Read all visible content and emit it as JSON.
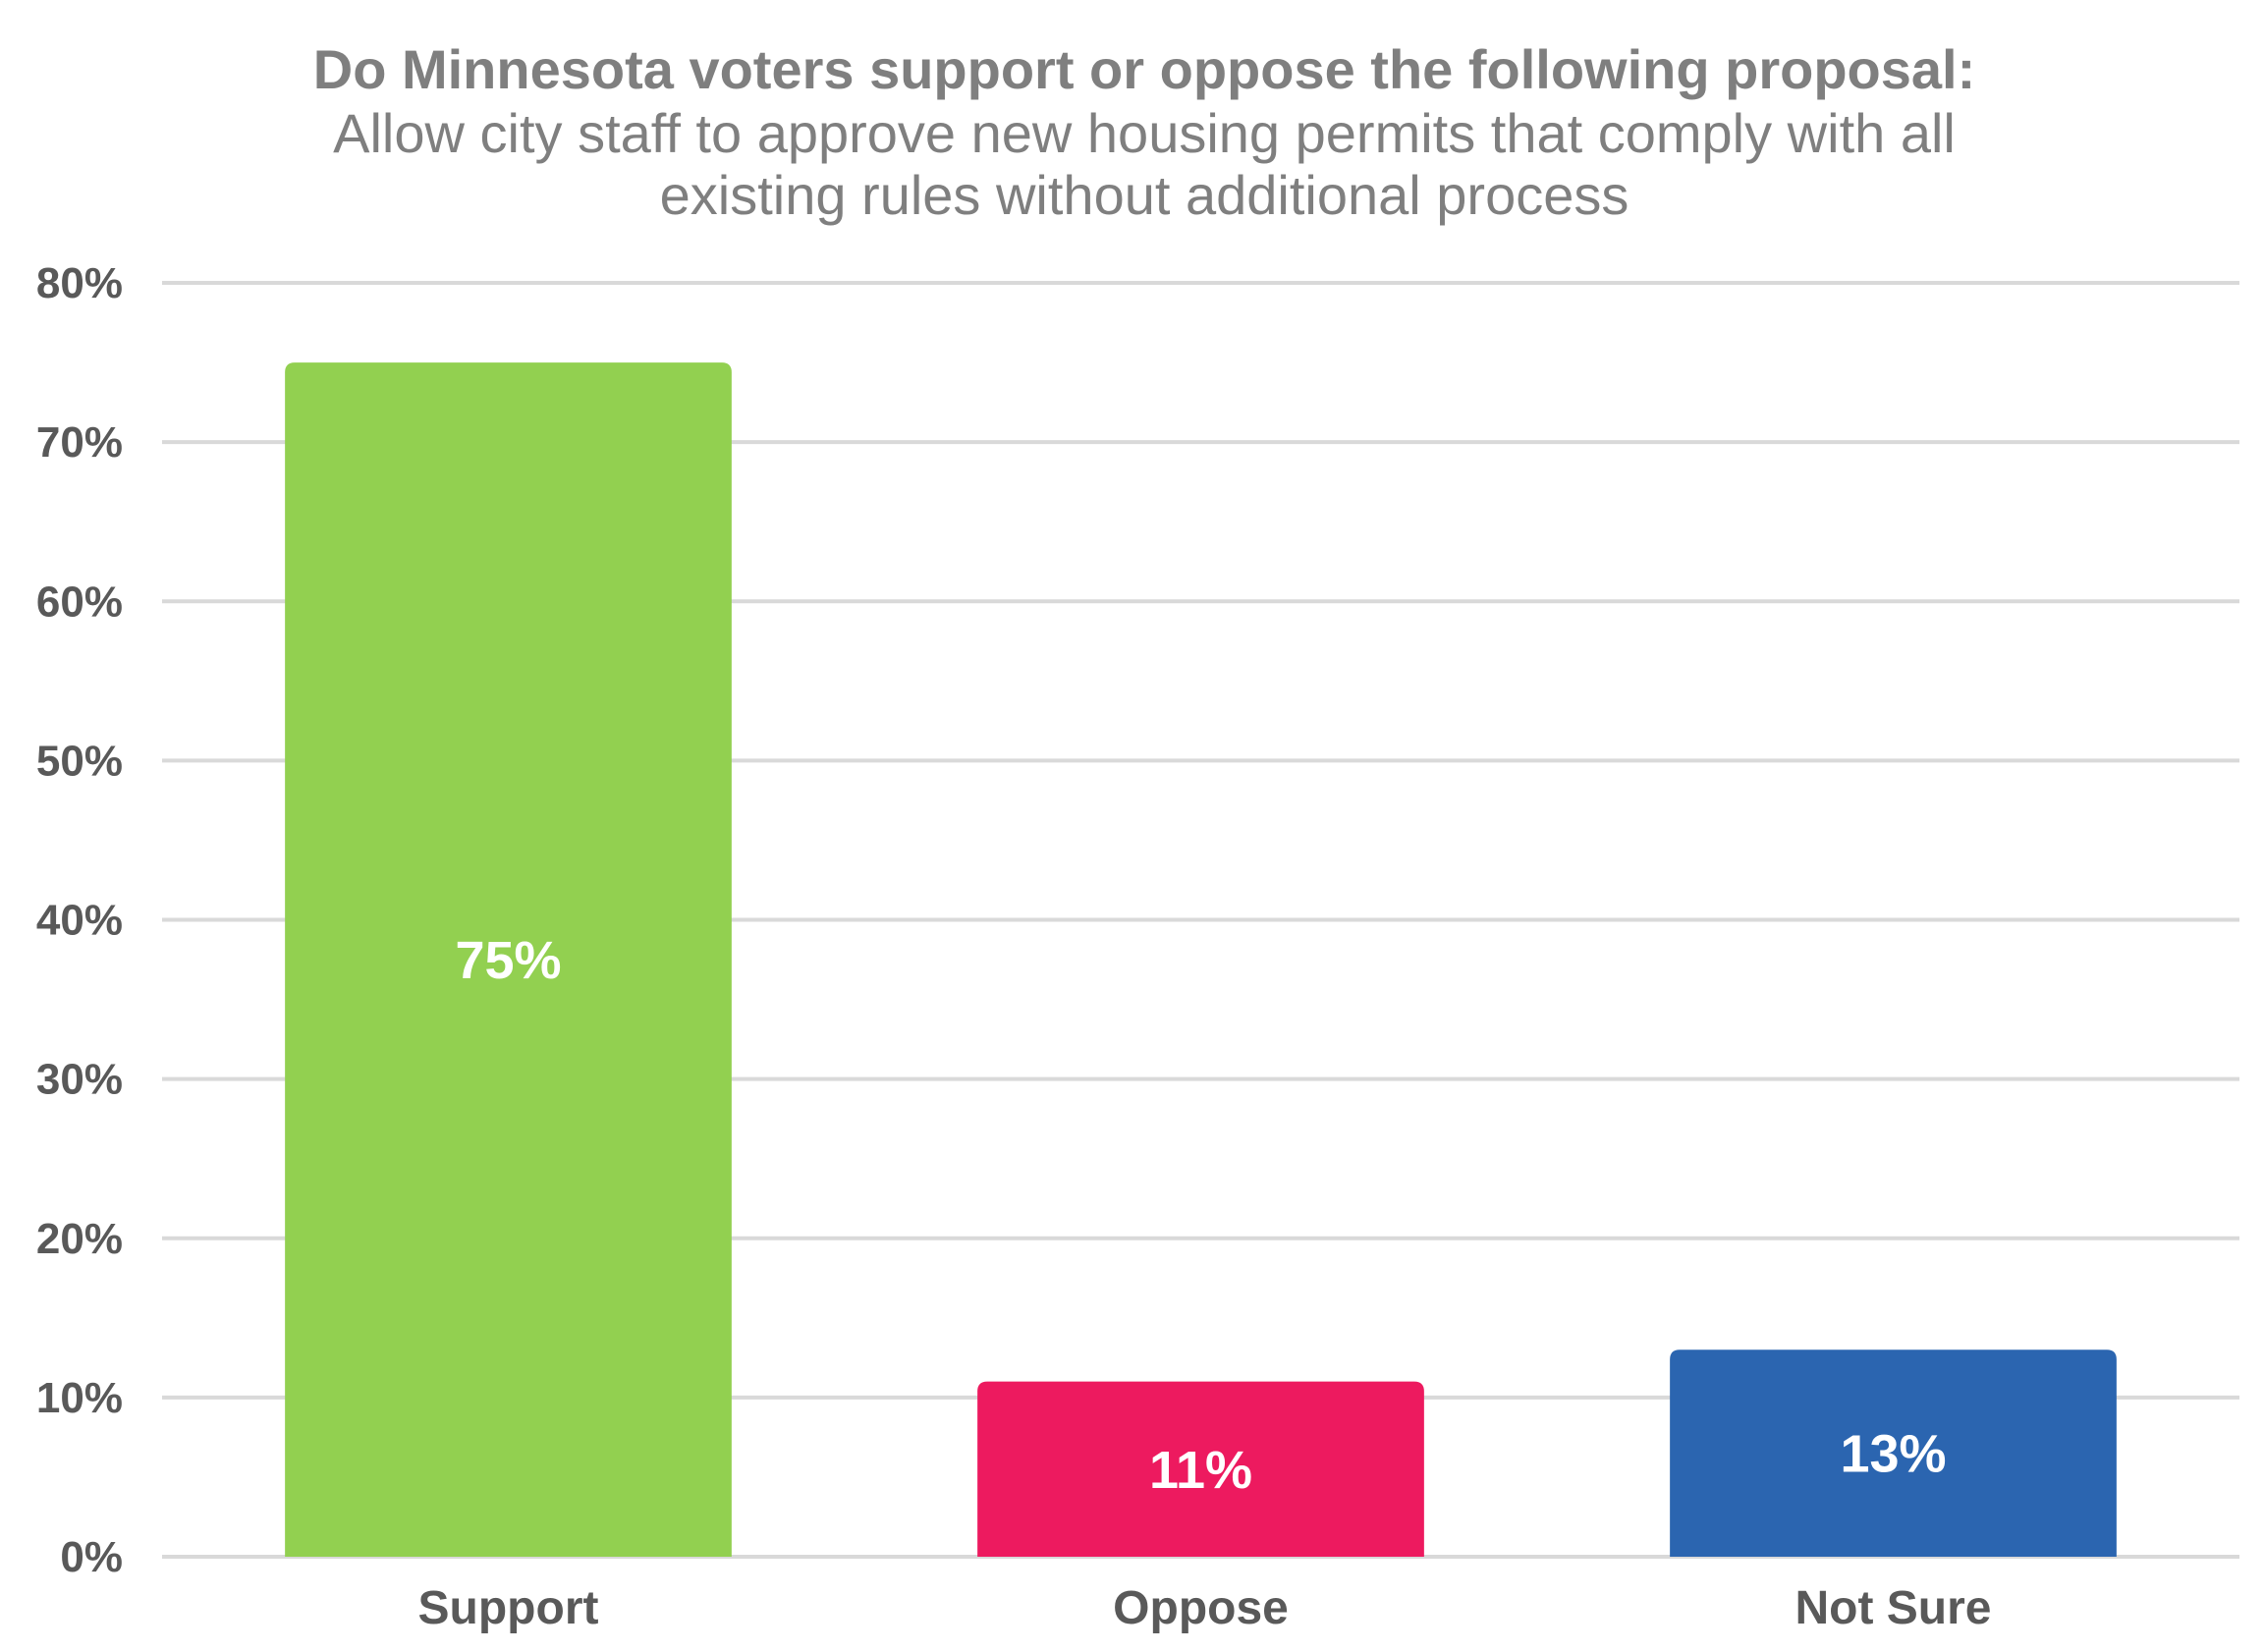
{
  "chart_data": {
    "type": "bar",
    "title_lines": [
      "Do Minnesota voters support or oppose the following proposal:",
      "Allow city staff to approve new housing permits that comply with all",
      "existing rules without additional process"
    ],
    "categories": [
      "Support",
      "Oppose",
      "Not Sure"
    ],
    "values": [
      75,
      11,
      13
    ],
    "data_labels": [
      "75%",
      "11%",
      "13%"
    ],
    "colors": [
      "#92d050",
      "#ed1a5f",
      "#2b65b0"
    ],
    "ylim": [
      0,
      80
    ],
    "y_ticks": [
      0,
      10,
      20,
      30,
      40,
      50,
      60,
      70,
      80
    ],
    "y_tick_labels": [
      "0%",
      "10%",
      "20%",
      "30%",
      "40%",
      "50%",
      "60%",
      "70%",
      "80%"
    ],
    "grid": true,
    "legend": "none"
  }
}
